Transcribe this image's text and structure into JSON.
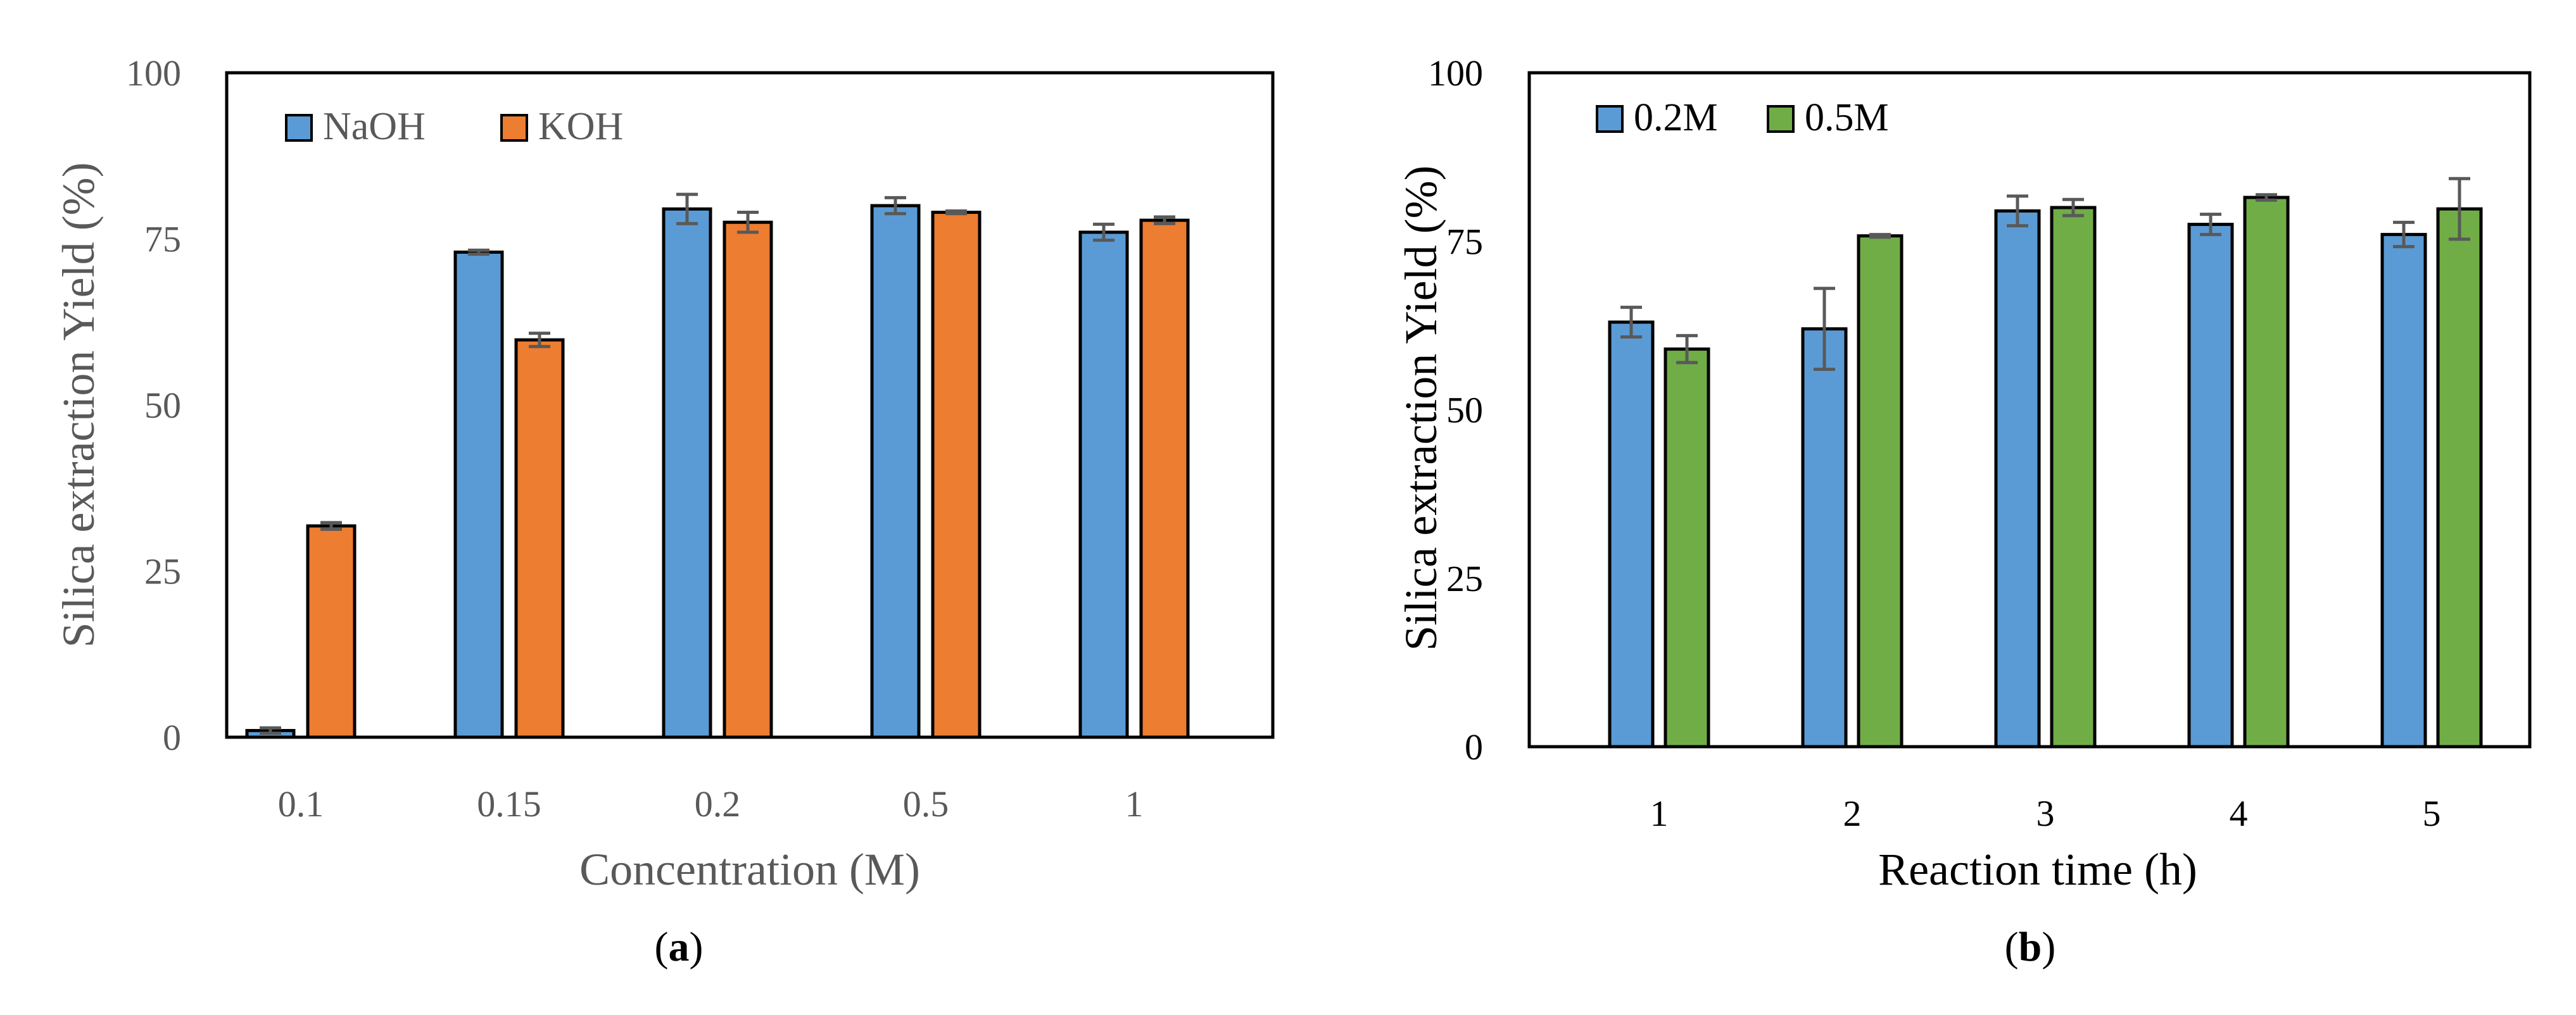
{
  "chart_data": [
    {
      "id": "a",
      "type": "bar",
      "caption_letter": "a",
      "xlabel": "Concentration (M)",
      "ylabel": "Silica extraction Yield (%)",
      "ylim": [
        0,
        100
      ],
      "yticks": [
        "0",
        "25",
        "50",
        "75",
        "100"
      ],
      "categories": [
        "0.1",
        "0.15",
        "0.2",
        "0.5",
        "1"
      ],
      "legend_position": "top-left",
      "grid": false,
      "series": [
        {
          "name": "NaOH",
          "color": "#5b9bd5",
          "values": [
            1,
            73,
            79.5,
            80,
            76
          ],
          "errors": [
            0.4,
            0.3,
            2.2,
            1.2,
            1.2
          ]
        },
        {
          "name": "KOH",
          "color": "#ed7d31",
          "values": [
            31.8,
            59.8,
            77.5,
            79,
            77.8
          ],
          "errors": [
            0.5,
            1.0,
            1.5,
            0.2,
            0.5
          ]
        }
      ]
    },
    {
      "id": "b",
      "type": "bar",
      "caption_letter": "b",
      "xlabel": "Reaction time (h)",
      "ylabel": "Silica extraction Yield (%)",
      "ylim": [
        0,
        100
      ],
      "yticks": [
        "0",
        "25",
        "50",
        "75",
        "100"
      ],
      "categories": [
        "1",
        "2",
        "3",
        "4",
        "5"
      ],
      "legend_position": "top-left",
      "grid": false,
      "series": [
        {
          "name": "0.2M",
          "color": "#5b9bd5",
          "values": [
            63,
            62,
            79.5,
            77.5,
            76
          ],
          "errors": [
            2.2,
            6.0,
            2.2,
            1.5,
            1.8
          ]
        },
        {
          "name": "0.5M",
          "color": "#70ad47",
          "values": [
            59,
            75.8,
            80,
            81.5,
            79.8
          ],
          "errors": [
            2.0,
            0.2,
            1.2,
            0.4,
            4.5
          ]
        }
      ]
    }
  ]
}
